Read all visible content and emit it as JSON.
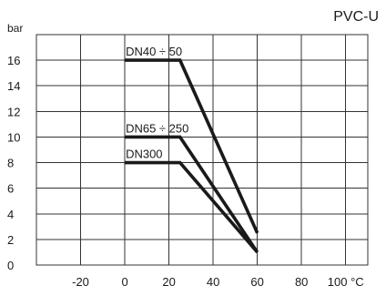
{
  "chart_data": {
    "type": "line",
    "title": "PVC-U",
    "ylabel": "bar",
    "x_unit": "°C",
    "xlim": [
      -40,
      110
    ],
    "ylim": [
      0,
      18
    ],
    "x_ticks": [
      -20,
      0,
      20,
      40,
      60,
      80,
      100
    ],
    "y_ticks": [
      0,
      2,
      4,
      6,
      8,
      10,
      12,
      14,
      16
    ],
    "grid": true,
    "series": [
      {
        "name": "DN40 ÷ 50",
        "x": [
          0,
          25,
          60
        ],
        "y": [
          16,
          16,
          2.5
        ]
      },
      {
        "name": "DN65 ÷ 250",
        "x": [
          0,
          25,
          60
        ],
        "y": [
          10,
          10,
          1
        ]
      },
      {
        "name": "DN300",
        "x": [
          0,
          25,
          60
        ],
        "y": [
          8,
          8,
          1
        ]
      }
    ]
  }
}
